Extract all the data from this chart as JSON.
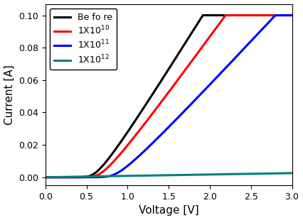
{
  "title": "",
  "xlabel": "Voltage [V]",
  "ylabel": "Current [A]",
  "xlim": [
    0.0,
    3.0
  ],
  "ylim": [
    -0.005,
    0.107
  ],
  "yticks": [
    0.0,
    0.02,
    0.04,
    0.06,
    0.08,
    0.1
  ],
  "xticks": [
    0.0,
    0.5,
    1.0,
    1.5,
    2.0,
    2.5,
    3.0
  ],
  "curves": [
    {
      "label": "Be fo re",
      "color": "#000000",
      "Is": 1e-09,
      "n_ideality": 1.5,
      "Rs": 12.0,
      "Imax": 0.1
    },
    {
      "label": "1X10",
      "exp": "10",
      "color": "#ff0000",
      "Is": 5e-10,
      "n_ideality": 1.6,
      "Rs": 14.0,
      "Imax": 0.1
    },
    {
      "label": "1X10",
      "exp": "11",
      "color": "#0000ff",
      "Is": 5e-11,
      "n_ideality": 1.8,
      "Rs": 18.0,
      "Imax": 0.1
    },
    {
      "label": "1X10",
      "exp": "12",
      "color": "#008080",
      "Is": 1e-30,
      "n_ideality": 1.0,
      "Rs": 1000.0,
      "Imax": 0.0025,
      "linear_slope": 0.00085
    }
  ],
  "legend_fontsize": 9,
  "axis_fontsize": 11,
  "tick_fontsize": 9,
  "linewidth": 2.2,
  "background_color": "#ffffff"
}
